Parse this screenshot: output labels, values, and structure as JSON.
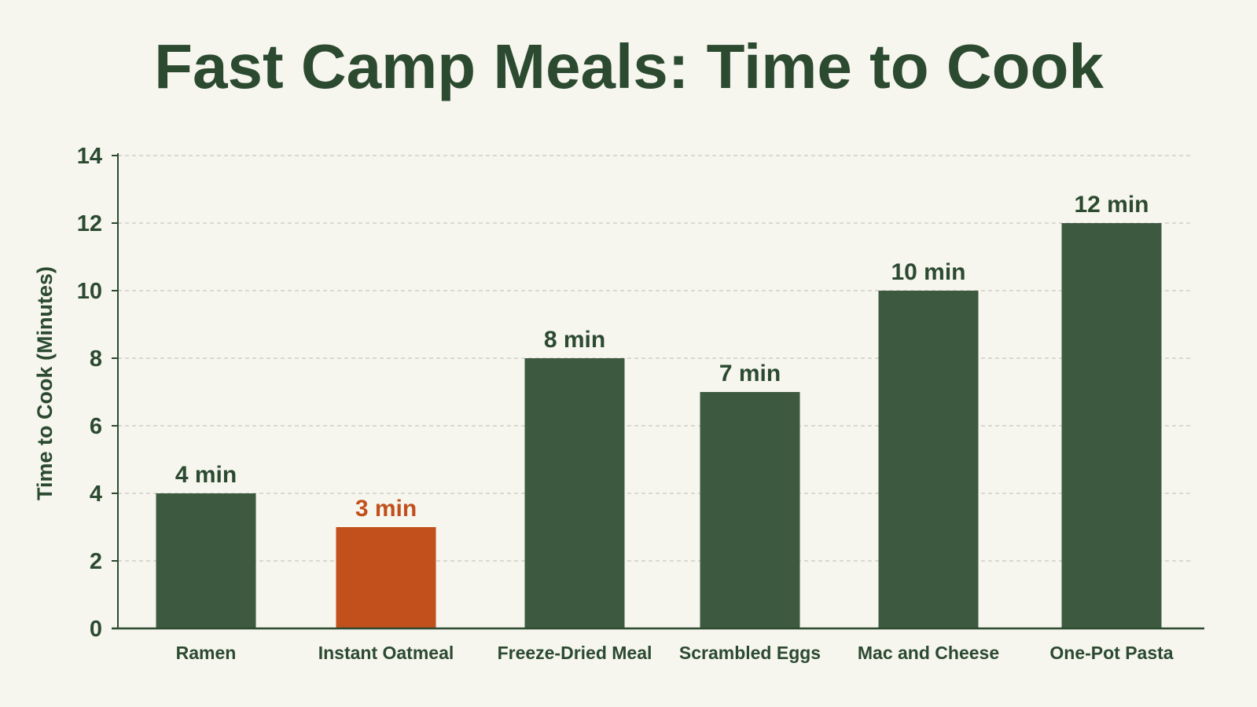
{
  "chart_data": {
    "type": "bar",
    "title": "Fast Camp Meals: Time to Cook",
    "xlabel": "",
    "ylabel": "Time to Cook (Minutes)",
    "categories": [
      "Ramen",
      "Instant Oatmeal",
      "Freeze-Dried Meal",
      "Scrambled Eggs",
      "Mac and Cheese",
      "One-Pot Pasta"
    ],
    "values": [
      4,
      3,
      8,
      7,
      10,
      12
    ],
    "value_labels": [
      "4 min",
      "3 min",
      "8 min",
      "7 min",
      "10 min",
      "12 min"
    ],
    "ylim": [
      0,
      14
    ],
    "yticks": [
      0,
      2,
      4,
      6,
      8,
      10,
      12,
      14
    ],
    "grid": true,
    "highlight_index": 1,
    "colors": {
      "bar": "#3d5a40",
      "highlight": "#c1501c",
      "text": "#2b4a30",
      "axis": "#2b4a30",
      "grid": "#c8c8c0",
      "background": "#f6f5ee"
    }
  }
}
